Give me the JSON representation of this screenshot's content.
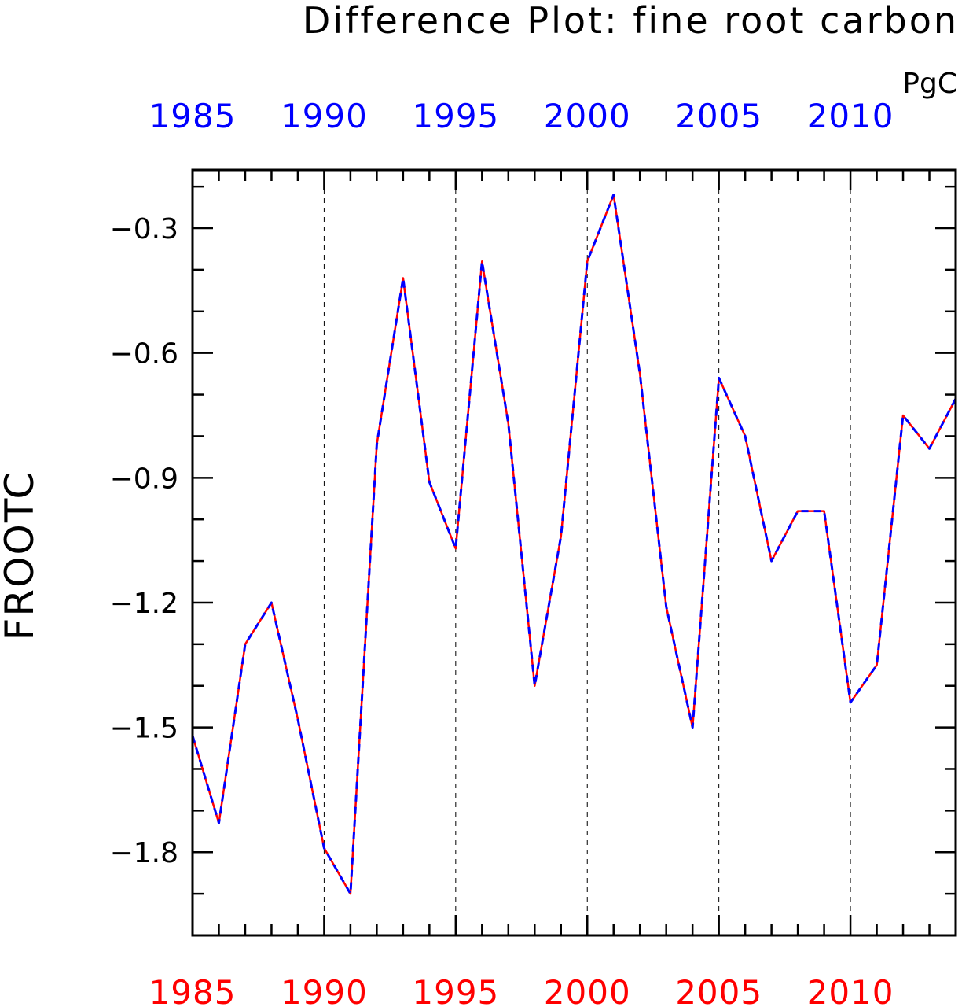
{
  "chart_data": {
    "type": "line",
    "title": "Difference Plot: fine root carbon",
    "units": "PgC",
    "ylabel": "FROOTC",
    "xlabel": "",
    "xlim": [
      1985,
      2014
    ],
    "ylim": [
      -2.0,
      -0.16
    ],
    "x_tick_labels": [
      "1985",
      "1990",
      "1995",
      "2000",
      "2005",
      "2010"
    ],
    "x_major_ticks": [
      1985,
      1990,
      1995,
      2000,
      2005,
      2010
    ],
    "y_tick_labels": [
      "−0.3",
      "−0.6",
      "−0.9",
      "−1.2",
      "−1.5",
      "−1.8"
    ],
    "y_major_ticks": [
      -0.3,
      -0.6,
      -0.9,
      -1.2,
      -1.5,
      -1.8
    ],
    "grid": "vertical dashed at major x ticks",
    "x": [
      1985,
      1986,
      1987,
      1988,
      1989,
      1990,
      1991,
      1992,
      1993,
      1994,
      1995,
      1996,
      1997,
      1998,
      1999,
      2000,
      2001,
      2002,
      2003,
      2004,
      2005,
      2006,
      2007,
      2008,
      2009,
      2010,
      2011,
      2012,
      2013,
      2014
    ],
    "series": [
      {
        "color": "#ff0000",
        "style": "solid",
        "values": [
          -1.52,
          -1.73,
          -1.3,
          -1.2,
          -1.48,
          -1.79,
          -1.9,
          -0.82,
          -0.42,
          -0.91,
          -1.07,
          -0.38,
          -0.77,
          -1.4,
          -1.04,
          -0.38,
          -0.22,
          -0.65,
          -1.21,
          -1.5,
          -0.66,
          -0.8,
          -1.1,
          -0.98,
          -0.98,
          -1.44,
          -1.35,
          -0.75,
          -0.83,
          -0.71
        ]
      },
      {
        "color": "#0000ff",
        "style": "dashed",
        "values": [
          -1.52,
          -1.73,
          -1.3,
          -1.2,
          -1.48,
          -1.79,
          -1.9,
          -0.82,
          -0.42,
          -0.91,
          -1.07,
          -0.38,
          -0.77,
          -1.4,
          -1.04,
          -0.38,
          -0.22,
          -0.65,
          -1.21,
          -1.5,
          -0.66,
          -0.8,
          -1.1,
          -0.98,
          -0.98,
          -1.44,
          -1.35,
          -0.75,
          -0.83,
          -0.71
        ]
      }
    ]
  },
  "colors": {
    "top_axis_labels": "#0000ff",
    "bottom_axis_labels": "#ff0000",
    "frame": "#000000"
  }
}
